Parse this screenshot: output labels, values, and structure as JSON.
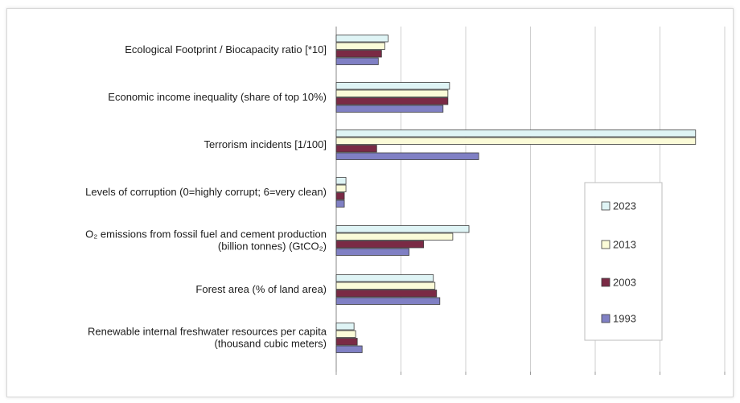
{
  "chart_data": {
    "type": "bar",
    "orientation": "horizontal",
    "categories": [
      [
        "Ecological Footprint / Biocapacity ratio [*10]"
      ],
      [
        "Economic income inequality (share of top 10%)"
      ],
      [
        "Terrorism incidents [1/100]"
      ],
      [
        "Levels of corruption (0=highly corrupt; 6=very clean)"
      ],
      [
        "O₂ emissions from fossil fuel and cement production",
        "(billion tonnes) (GtCO₂)"
      ],
      [
        "Forest area (% of land area)"
      ],
      [
        "Renewable internal freshwater resources per capita",
        "(thousand cubic meters)"
      ]
    ],
    "series": [
      {
        "name": "2023",
        "color": "#dff4f5",
        "values": [
          16,
          35,
          111,
          3,
          41,
          30,
          5.5
        ]
      },
      {
        "name": "2013",
        "color": "#fbfbd8",
        "values": [
          15,
          34.5,
          111,
          3,
          36,
          30.5,
          6
        ]
      },
      {
        "name": "2003",
        "color": "#7a2a45",
        "values": [
          14,
          34.5,
          12.5,
          2.5,
          27,
          31,
          6.5
        ]
      },
      {
        "name": "1993",
        "color": "#8080c4",
        "values": [
          13,
          33,
          44,
          2.5,
          22.5,
          32,
          8
        ]
      }
    ],
    "xlim": [
      0,
      120
    ],
    "xticks_step": 20,
    "grid": true,
    "xlabel": "",
    "ylabel": "",
    "title": "",
    "legend_position": "right"
  }
}
